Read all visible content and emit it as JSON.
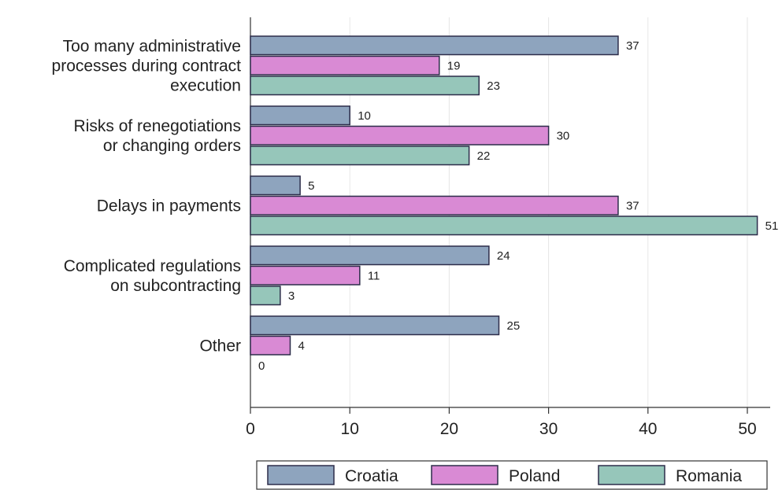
{
  "chart_data": {
    "type": "bar",
    "orientation": "horizontal",
    "categories": [
      [
        "Too many administrative",
        "processes during contract",
        "execution"
      ],
      [
        "Risks of renegotiations",
        "or changing orders"
      ],
      [
        "Delays in payments"
      ],
      [
        "Complicated regulations",
        "on subcontracting"
      ],
      [
        "Other"
      ]
    ],
    "series": [
      {
        "name": "Croatia",
        "color": "#8ea4be",
        "values": [
          37,
          10,
          5,
          24,
          25
        ]
      },
      {
        "name": "Poland",
        "color": "#d98ad4",
        "values": [
          19,
          30,
          37,
          11,
          4
        ]
      },
      {
        "name": "Romania",
        "color": "#96c6ba",
        "values": [
          23,
          22,
          51,
          3,
          0
        ]
      }
    ],
    "xlim": [
      0,
      54
    ],
    "xticks": [
      0,
      10,
      20,
      30,
      40,
      50
    ],
    "grid": true,
    "legend_position": "bottom"
  }
}
